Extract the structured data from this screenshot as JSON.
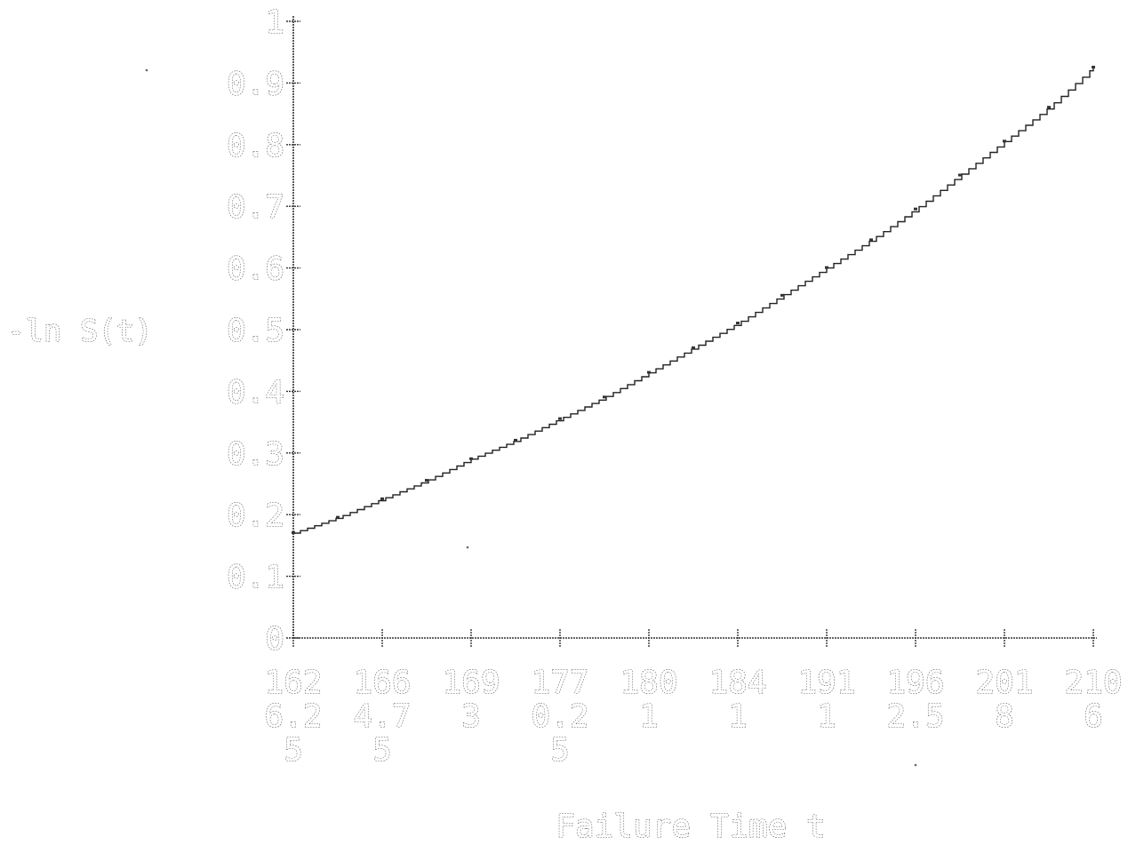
{
  "chart_data": {
    "type": "line",
    "title": "",
    "xlabel": "Failure Time t",
    "ylabel": "-ln S(t)",
    "y_ticks": [
      "0",
      "0.1",
      "0.2",
      "0.3",
      "0.4",
      "0.5",
      "0.6",
      "0.7",
      "0.8",
      "0.9",
      "1"
    ],
    "ylim": [
      0,
      1
    ],
    "x_ticks": [
      {
        "lines": [
          "162",
          "6.2",
          "5"
        ]
      },
      {
        "lines": [
          "166",
          "4.7",
          "5"
        ]
      },
      {
        "lines": [
          "169",
          "3"
        ]
      },
      {
        "lines": [
          "177",
          "0.2",
          "5"
        ]
      },
      {
        "lines": [
          "180",
          "1"
        ]
      },
      {
        "lines": [
          "184",
          "1"
        ]
      },
      {
        "lines": [
          "191",
          "1"
        ]
      },
      {
        "lines": [
          "196",
          "2.5"
        ]
      },
      {
        "lines": [
          "201",
          "8"
        ]
      },
      {
        "lines": [
          "210",
          "6"
        ]
      }
    ],
    "series": [
      {
        "style": "step",
        "x_index": [
          0,
          0.5,
          1,
          1.5,
          2,
          2.5,
          3,
          3.5,
          4,
          4.5,
          5,
          5.5,
          6,
          6.5,
          7,
          7.5,
          8,
          8.5,
          9
        ],
        "values": [
          0.17,
          0.195,
          0.225,
          0.255,
          0.29,
          0.32,
          0.355,
          0.39,
          0.43,
          0.47,
          0.51,
          0.555,
          0.6,
          0.645,
          0.695,
          0.75,
          0.805,
          0.86,
          0.925
        ]
      }
    ],
    "grid": false,
    "legend": "none"
  }
}
